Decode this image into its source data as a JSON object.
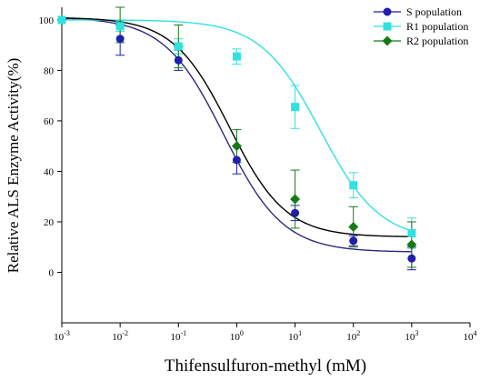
{
  "chart_data": {
    "type": "scatter",
    "title": "",
    "xlabel": "Thifensulfuron-methyl (mM)",
    "ylabel": "Relative ALS Enzyme Activity(%)",
    "xscale": "log",
    "xlim": [
      0.001,
      10000
    ],
    "ylim": [
      -20,
      105
    ],
    "yticks": [
      0,
      20,
      40,
      60,
      80,
      100
    ],
    "xtick_labels": [
      {
        "base": "10",
        "exp": "-3"
      },
      {
        "base": "10",
        "exp": "-2"
      },
      {
        "base": "10",
        "exp": "-1"
      },
      {
        "base": "10",
        "exp": "0"
      },
      {
        "base": "10",
        "exp": "1"
      },
      {
        "base": "10",
        "exp": "2"
      },
      {
        "base": "10",
        "exp": "3"
      },
      {
        "base": "10",
        "exp": "4"
      }
    ],
    "grid": false,
    "legend_position": "top-right",
    "series": [
      {
        "name": "S population",
        "color": "#1f1fa8",
        "curve_color": "#2b2b7a",
        "marker": "circle",
        "x": [
          0.001,
          0.01,
          0.1,
          1,
          10,
          100,
          1000
        ],
        "y": [
          100,
          92.5,
          84,
          44.5,
          23.5,
          12.5,
          5.5
        ],
        "err": [
          0,
          6.5,
          4,
          5.5,
          3,
          2,
          4.5
        ],
        "fit": {
          "top": 101,
          "bottom": 8,
          "ec50": 0.6,
          "hill": 0.85
        }
      },
      {
        "name": "R1 population",
        "color": "#33e0e0",
        "curve_color": "#33e0e0",
        "marker": "square",
        "x": [
          0.001,
          0.01,
          0.1,
          1,
          10,
          100,
          1000
        ],
        "y": [
          100,
          97.5,
          89.5,
          85.5,
          65.5,
          34.5,
          15.5
        ],
        "err": [
          0,
          2,
          3,
          3,
          8.5,
          5,
          6
        ],
        "fit": {
          "top": 100,
          "bottom": 12.5,
          "ec50": 27,
          "hill": 0.85
        }
      },
      {
        "name": "R2 population",
        "color": "#167a16",
        "curve_color": "#000000",
        "marker": "diamond",
        "x": [
          0.001,
          0.01,
          0.1,
          1,
          10,
          100,
          1000
        ],
        "y": [
          100,
          98,
          89.5,
          50,
          29,
          18,
          11
        ],
        "err": [
          0,
          7,
          8.5,
          6.5,
          11.5,
          8,
          9
        ],
        "fit": {
          "top": 101,
          "bottom": 14,
          "ec50": 0.75,
          "hill": 0.9
        }
      }
    ]
  }
}
